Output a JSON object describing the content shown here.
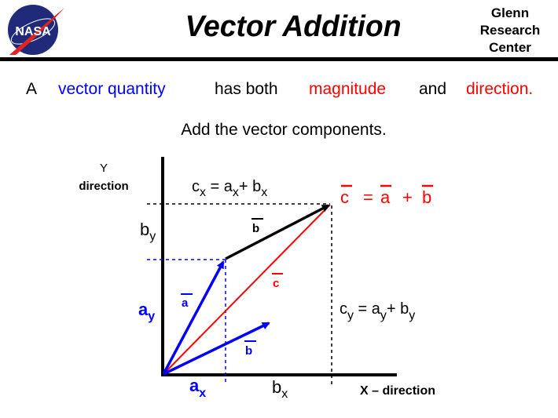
{
  "header": {
    "logo_text": "NASA",
    "title": "Vector  Addition",
    "center_line1": "Glenn",
    "center_line2": "Research",
    "center_line3": "Center"
  },
  "intro": {
    "part1": "A",
    "part2": "vector quantity",
    "part3": "has both",
    "part4": "magnitude",
    "part5": "and",
    "part6": "direction.",
    "line2": "Add the vector components."
  },
  "diagram": {
    "y_axis_label1": "Y",
    "y_axis_label2": "direction",
    "x_axis_label": "X – direction",
    "cx_eq": {
      "c": "c",
      "x": "x",
      "eq": " = a",
      "x2": "x",
      "plus": "+  b",
      "x3": "x"
    },
    "cy_eq": {
      "c": "c",
      "y": "y",
      "eq": " = a",
      "y2": "y",
      "plus": "+  b",
      "y3": "y"
    },
    "sum_eq": {
      "c": "c",
      "eq": "=",
      "a": "a",
      "plus": "+",
      "b": "b"
    },
    "label_b_black": "b",
    "label_a": "a",
    "label_b_blue": "b",
    "label_c": "c",
    "by": {
      "b": "b",
      "y": "y"
    },
    "ay": {
      "a": "a",
      "y": "y"
    },
    "ax": {
      "a": "a",
      "x": "x"
    },
    "bx": {
      "b": "b",
      "x": "x"
    }
  },
  "colors": {
    "blue": "#0000ff",
    "red": "#ff0000",
    "black": "#000000",
    "nasa_blue": "#1f2a7a"
  }
}
